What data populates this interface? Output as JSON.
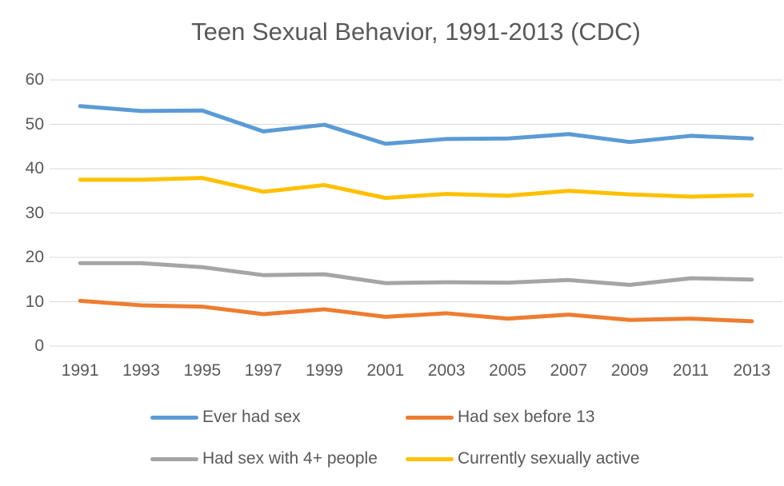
{
  "chart_data": {
    "type": "line",
    "title": "Teen Sexual Behavior, 1991-2013 (CDC)",
    "categories": [
      "1991",
      "1993",
      "1995",
      "1997",
      "1999",
      "2001",
      "2003",
      "2005",
      "2007",
      "2009",
      "2011",
      "2013"
    ],
    "series": [
      {
        "name": "Ever had sex",
        "color": "#5B9BD5",
        "values": [
          54.1,
          53.0,
          53.1,
          48.4,
          49.9,
          45.6,
          46.7,
          46.8,
          47.8,
          46.0,
          47.4,
          46.8
        ]
      },
      {
        "name": "Had sex before 13",
        "color": "#ED7D31",
        "values": [
          10.2,
          9.2,
          8.9,
          7.2,
          8.3,
          6.6,
          7.4,
          6.2,
          7.1,
          5.9,
          6.2,
          5.6
        ]
      },
      {
        "name": "Had sex with 4+ people",
        "color": "#A5A5A5",
        "values": [
          18.7,
          18.7,
          17.8,
          16.0,
          16.2,
          14.2,
          14.4,
          14.3,
          14.9,
          13.8,
          15.3,
          15.0
        ]
      },
      {
        "name": "Currently sexually active",
        "color": "#FFC000",
        "values": [
          37.5,
          37.5,
          37.9,
          34.8,
          36.3,
          33.4,
          34.3,
          33.9,
          35.0,
          34.2,
          33.7,
          34.0
        ]
      }
    ],
    "xlabel": "",
    "ylabel": "",
    "ylim": [
      0,
      60
    ],
    "yticks": [
      0,
      10,
      20,
      30,
      40,
      50,
      60
    ],
    "grid": "horizontal",
    "gridline_color": "#D9D9D9",
    "text_color": "#595959",
    "legend_position": "bottom",
    "legend_rows": [
      [
        "Ever had sex",
        "Had sex before 13"
      ],
      [
        "Had sex with 4+ people",
        "Currently sexually active"
      ]
    ]
  }
}
